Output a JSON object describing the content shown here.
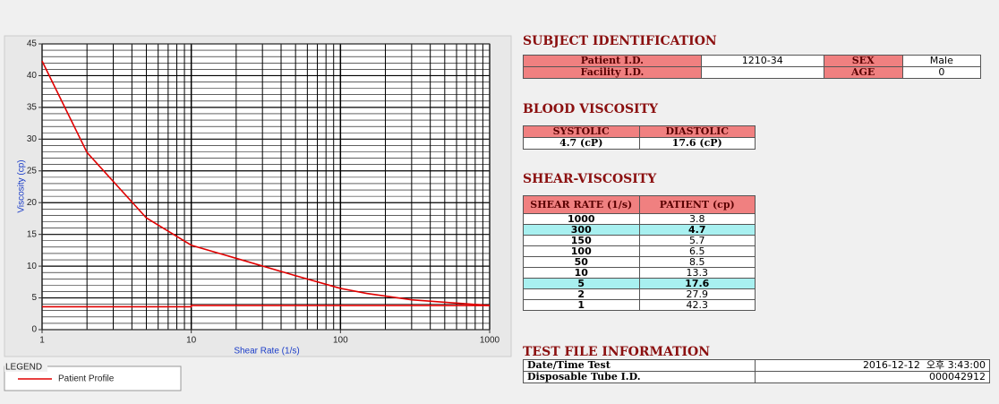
{
  "chart_data": {
    "type": "line",
    "x_label": "Shear Rate (1/s)",
    "y_label": "Viscosity (cp)",
    "log_x": true,
    "grid": true,
    "xlim": [
      1,
      1000
    ],
    "xticks": [
      1,
      10,
      100,
      1000
    ],
    "xminorticks": [
      2,
      3,
      4,
      5,
      6,
      7,
      8,
      9,
      20,
      30,
      40,
      50,
      60,
      70,
      80,
      90,
      200,
      300,
      400,
      500,
      600,
      700,
      800,
      900
    ],
    "ylim": [
      0,
      45
    ],
    "yticks": [
      0,
      5,
      10,
      15,
      20,
      25,
      30,
      35,
      40,
      45
    ],
    "yminorticks": [
      1,
      2,
      3,
      4,
      6,
      7,
      8,
      9,
      11,
      12,
      13,
      14,
      16,
      17,
      18,
      19,
      21,
      22,
      23,
      24,
      26,
      27,
      28,
      29,
      31,
      32,
      33,
      34,
      36,
      37,
      38,
      39,
      41,
      42,
      43,
      44
    ],
    "legend_title": "LEGEND",
    "series": [
      {
        "name": "Patient Profile",
        "color": "#e00000",
        "x": [
          1,
          2,
          5,
          10,
          50,
          100,
          150,
          300,
          1000
        ],
        "values": [
          42.3,
          27.9,
          17.6,
          13.3,
          8.5,
          6.5,
          5.7,
          4.7,
          3.8
        ]
      },
      {
        "color": "#e00000",
        "x": [
          1,
          10,
          10,
          1000
        ],
        "values": [
          3.6,
          3.6,
          3.8,
          3.8
        ]
      }
    ]
  },
  "subject_identification": {
    "title": "SUBJECT IDENTIFICATION",
    "fields": [
      {
        "label": "Patient I.D.",
        "value": "1210-34"
      },
      {
        "label": "SEX",
        "value": "Male"
      },
      {
        "label": "Facility I.D."
      },
      {
        "label": "AGE",
        "value": 0
      }
    ]
  },
  "blood_viscosity": {
    "title": "BLOOD VISCOSITY",
    "headers": [
      "SYSTOLIC",
      "DIASTOLIC"
    ],
    "values": [
      "4.7 (cP)",
      "17.6 (cP)"
    ]
  },
  "shear_viscosity": {
    "title": "SHEAR-VISCOSITY",
    "headers": [
      "SHEAR RATE (1/s)",
      "PATIENT (cp)"
    ],
    "rows": [
      [
        1000,
        3.8
      ],
      [
        300,
        4.7
      ],
      [
        150,
        5.7
      ],
      [
        100,
        6.5
      ],
      [
        50,
        8.5
      ],
      [
        10,
        13.3
      ],
      [
        5,
        17.6
      ],
      [
        2,
        27.9
      ],
      [
        1,
        42.3
      ]
    ],
    "highlight_rows": [
      1,
      6
    ]
  },
  "test_file_information": {
    "title": "TEST FILE INFORMATION",
    "rows": [
      [
        "Date/Time Test",
        "2016-12-12  오후 3:43:00"
      ],
      [
        "Disposable Tube I.D.",
        "000042912"
      ]
    ]
  }
}
